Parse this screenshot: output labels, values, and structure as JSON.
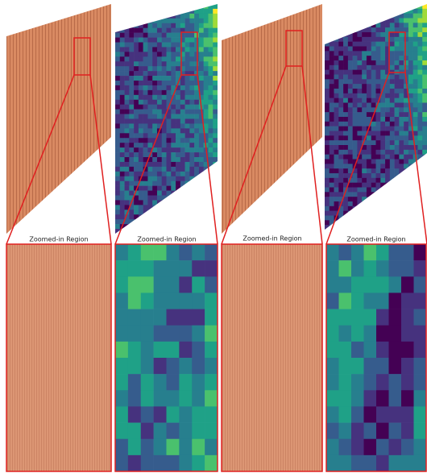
{
  "panels": [
    {
      "label": "Zoomed-in Region"
    },
    {
      "label": "Zoomed-in Region"
    },
    {
      "label": "Zoomed-in Region"
    },
    {
      "label": "Zoomed-in Region"
    }
  ]
}
